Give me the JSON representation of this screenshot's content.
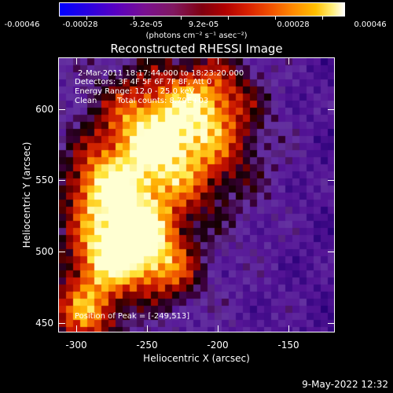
{
  "colorbar": {
    "ticks": [
      "-0.00046",
      "-0.00028",
      "-9.2e-05",
      "9.2e-05",
      "0.00028",
      "0.00046"
    ],
    "units": "(photons cm⁻² s⁻¹ asec⁻²)"
  },
  "title": "Reconstructed RHESSI Image",
  "info": {
    "time_range": "2-Mar-2011 18:17:44.000 to 18:23:20.000",
    "detectors": "Detectors: 3F 4F 5F 6F 7F 8F, Att 0",
    "energy": "Energy Range: 12.0 - 25.0 keV",
    "clean_label": "Clean",
    "total_counts": "Total counts: 8.79E+03"
  },
  "peak": "Position of Peak = [-249,513]",
  "axes": {
    "xlabel": "Heliocentric X (arcsec)",
    "ylabel": "Heliocentric Y (arcsec)",
    "xticks": [
      "-300",
      "-250",
      "-200",
      "-150"
    ],
    "yticks": [
      "600",
      "550",
      "500",
      "450"
    ]
  },
  "footer": {
    "date": "9-May-2022 12:32"
  },
  "colors": {
    "background": "#000000",
    "text": "#ffffff"
  }
}
